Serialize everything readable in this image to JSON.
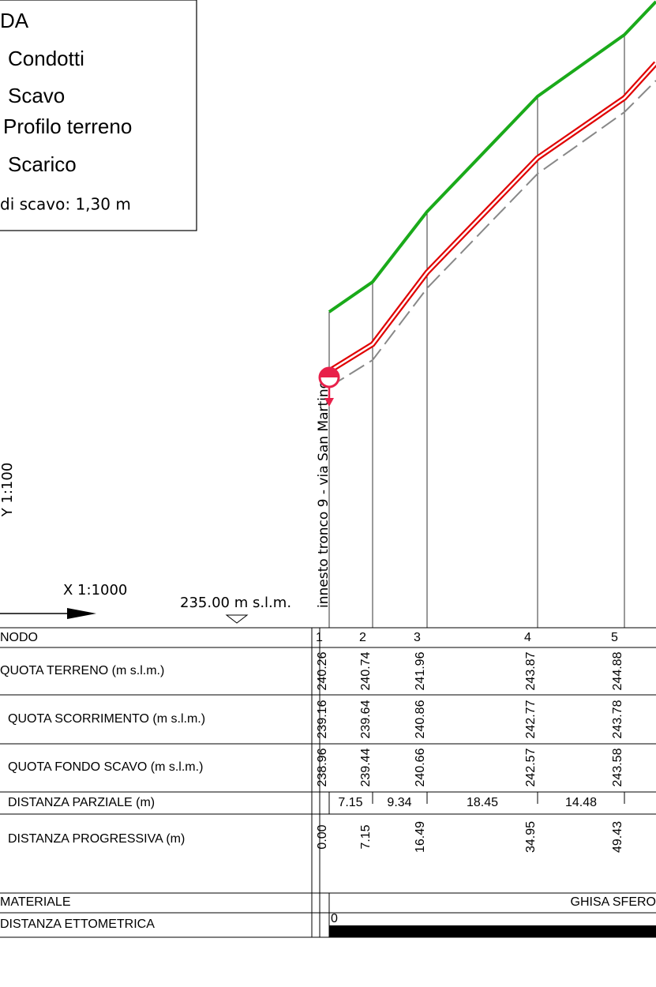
{
  "legend": {
    "title": "DA",
    "items": [
      "Condotti",
      "Scavo",
      "Profilo terreno",
      "Scarico"
    ],
    "note": "di scavo: 1,30 m"
  },
  "scale_y": "Y 1:100",
  "scale_x": "X 1:1000",
  "datum": "235.00 m s.l.m.",
  "branch_label": "innesto tronco 9 - via San Martino",
  "table": {
    "row_labels": [
      "NODO",
      "QUOTA TERRENO (m s.l.m.)",
      "QUOTA SCORRIMENTO (m s.l.m.)",
      "QUOTA FONDO SCAVO (m s.l.m.)",
      "DISTANZA PARZIALE (m)",
      "DISTANZA PROGRESSIVA (m)",
      "MATERIALE",
      "DISTANZA ETTOMETRICA"
    ],
    "nodes": [
      "1",
      "2",
      "3",
      "4",
      "5"
    ],
    "quota_terreno": [
      "240.26",
      "240.74",
      "241.96",
      "243.87",
      "244.88"
    ],
    "quota_scorrimento": [
      "239.16",
      "239.64",
      "240.86",
      "242.77",
      "243.78"
    ],
    "quota_fondo_scavo": [
      "238.96",
      "239.44",
      "240.66",
      "242.57",
      "243.58"
    ],
    "distanza_parziale": [
      "7.15",
      "9.34",
      "18.45",
      "14.48"
    ],
    "distanza_progressiva": [
      "0.00",
      "7.15",
      "16.49",
      "34.95",
      "49.43"
    ],
    "materiale": "GHISA SFERO",
    "ettometrica": "0"
  }
}
